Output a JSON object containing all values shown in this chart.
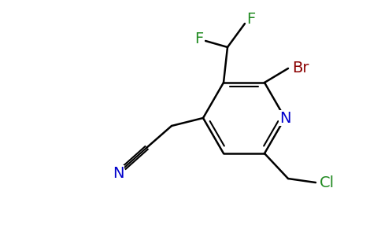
{
  "bg_color": "#ffffff",
  "bond_color": "#000000",
  "atom_colors": {
    "N": "#0000cc",
    "Br": "#8b0000",
    "F": "#228b22",
    "Cl": "#228b22",
    "C": "#000000"
  }
}
